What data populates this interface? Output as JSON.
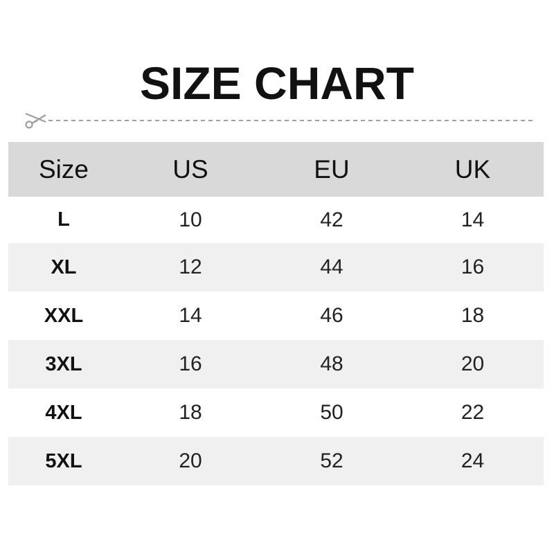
{
  "title": "SIZE CHART",
  "icons": {
    "cut": "scissors-icon"
  },
  "colors": {
    "header_bg": "#d9d9d9",
    "alt_row_bg": "#f0f0f0",
    "cut_line": "#a0a0a0"
  },
  "table": {
    "headers": [
      "Size",
      "US",
      "EU",
      "UK"
    ],
    "rows": [
      [
        "L",
        "10",
        "42",
        "14"
      ],
      [
        "XL",
        "12",
        "44",
        "16"
      ],
      [
        "XXL",
        "14",
        "46",
        "18"
      ],
      [
        "3XL",
        "16",
        "48",
        "20"
      ],
      [
        "4XL",
        "18",
        "50",
        "22"
      ],
      [
        "5XL",
        "20",
        "52",
        "24"
      ]
    ]
  }
}
